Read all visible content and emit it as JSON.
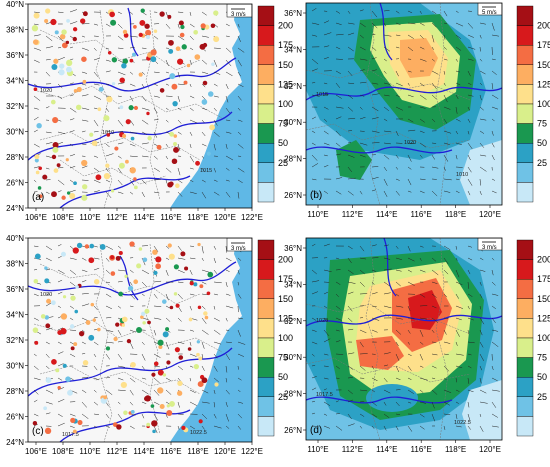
{
  "panels": [
    {
      "id": "a",
      "label": "(a)",
      "style": "stations",
      "lon_ticks": [
        "106°E",
        "108°E",
        "110°E",
        "112°E",
        "114°E",
        "116°E",
        "118°E",
        "120°E",
        "122°E"
      ],
      "lat_ticks": [
        "24°N",
        "26°N",
        "28°N",
        "30°N",
        "32°N",
        "34°N",
        "36°N",
        "38°N",
        "40°N"
      ],
      "vector_ref": "3 m/s",
      "isobar_labels": [
        "1020",
        "1010",
        "1015"
      ]
    },
    {
      "id": "b",
      "label": "(b)",
      "style": "field",
      "lon_ticks": [
        "110°E",
        "112°E",
        "114°E",
        "116°E",
        "118°E",
        "120°E"
      ],
      "lat_ticks": [
        "26°N",
        "28°N",
        "30°N",
        "32°N",
        "34°N",
        "36°N"
      ],
      "vector_ref": "5 m/s",
      "isobar_labels": [
        "1015",
        "1020",
        "1010"
      ]
    },
    {
      "id": "c",
      "label": "(c)",
      "style": "stations",
      "lon_ticks": [
        "106°E",
        "108°E",
        "110°E",
        "112°E",
        "114°E",
        "116°E",
        "118°E",
        "120°E",
        "122°E"
      ],
      "lat_ticks": [
        "24°N",
        "26°N",
        "28°N",
        "30°N",
        "32°N",
        "34°N",
        "36°N",
        "38°N",
        "40°N"
      ],
      "vector_ref": "3 m/s",
      "isobar_labels": [
        "1020",
        "1017.5",
        "1022.5"
      ]
    },
    {
      "id": "d",
      "label": "(d)",
      "style": "field",
      "lon_ticks": [
        "110°E",
        "112°E",
        "114°E",
        "116°E",
        "118°E",
        "120°E"
      ],
      "lat_ticks": [
        "26°N",
        "28°N",
        "30°N",
        "32°N",
        "34°N",
        "36°N"
      ],
      "vector_ref": "3 m/s",
      "isobar_labels": [
        "1020",
        "1017.5",
        "1022.5"
      ]
    }
  ],
  "colorbar": {
    "levels": [
      "200",
      "175",
      "150",
      "125",
      "100",
      "75",
      "50",
      "25"
    ],
    "colors": [
      "#a50f15",
      "#d7191c",
      "#f46d43",
      "#fdae61",
      "#fee08b",
      "#d9ef8b",
      "#1a9850",
      "#2ca1c5",
      "#6fc2e6",
      "#c8e8f7"
    ]
  },
  "colors": {
    "land": "#f7f7f7",
    "sea": "#5fb8e6",
    "isobar": "#1f1fd6",
    "border": "#777777"
  }
}
